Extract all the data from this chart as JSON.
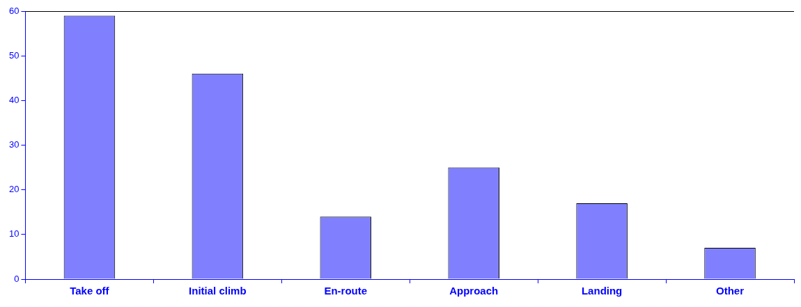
{
  "chart_data": {
    "type": "bar",
    "categories": [
      "Take off",
      "Initial climb",
      "En-route",
      "Approach",
      "Landing",
      "Other"
    ],
    "values": [
      59,
      46,
      14,
      25,
      17,
      7
    ],
    "color": "#8080ff",
    "ylim": [
      0,
      60
    ],
    "yticks": [
      0,
      10,
      20,
      30,
      40,
      50,
      60
    ],
    "grid": false,
    "legend": false
  }
}
